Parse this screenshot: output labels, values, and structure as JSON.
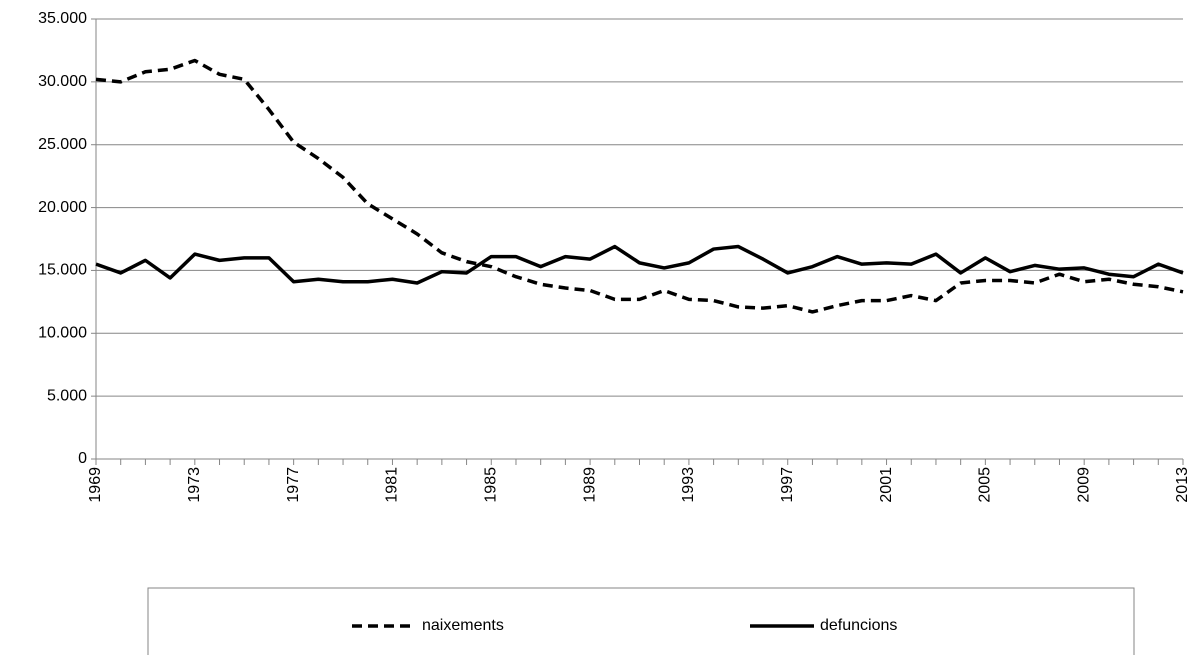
{
  "chart_data": {
    "type": "line",
    "x": [
      1969,
      1970,
      1971,
      1972,
      1973,
      1974,
      1975,
      1976,
      1977,
      1978,
      1979,
      1980,
      1981,
      1982,
      1983,
      1984,
      1985,
      1986,
      1987,
      1988,
      1989,
      1990,
      1991,
      1992,
      1993,
      1994,
      1995,
      1996,
      1997,
      1998,
      1999,
      2000,
      2001,
      2002,
      2003,
      2004,
      2005,
      2006,
      2007,
      2008,
      2009,
      2010,
      2011,
      2012,
      2013
    ],
    "series": [
      {
        "name": "naixements",
        "color": "#000000",
        "line_style": "dashed",
        "values": [
          30200,
          30000,
          30800,
          31000,
          31700,
          30600,
          30200,
          27800,
          25200,
          23900,
          22400,
          20300,
          19100,
          17900,
          16400,
          15700,
          15300,
          14500,
          13900,
          13600,
          13400,
          12700,
          12700,
          13400,
          12700,
          12600,
          12100,
          12000,
          12200,
          11700,
          12200,
          12600,
          12600,
          13000,
          12600,
          14000,
          14200,
          14200,
          14000,
          14700,
          14100,
          14300,
          13900,
          13700,
          13300
        ]
      },
      {
        "name": "defuncions",
        "color": "#000000",
        "line_style": "solid",
        "values": [
          15500,
          14800,
          15800,
          14400,
          16300,
          15800,
          16000,
          16000,
          14100,
          14300,
          14100,
          14100,
          14300,
          14000,
          14900,
          14800,
          16100,
          16100,
          15300,
          16100,
          15900,
          16900,
          15600,
          15200,
          15600,
          16700,
          16900,
          15900,
          14800,
          15300,
          16100,
          15500,
          15600,
          15500,
          16300,
          14800,
          16000,
          14900,
          15400,
          15100,
          15200,
          14700,
          14500,
          15500,
          14800
        ]
      }
    ],
    "xlim": [
      1969,
      2013
    ],
    "xticks": [
      1969,
      1973,
      1977,
      1981,
      1985,
      1989,
      1993,
      1997,
      2001,
      2005,
      2009,
      2013
    ],
    "ylim": [
      0,
      35000
    ],
    "yticks": [
      0,
      {
        "value": 5000,
        "label": "5.000"
      },
      {
        "value": 10000,
        "label": "10.000"
      },
      {
        "value": 15000,
        "label": "15.000"
      },
      {
        "value": 20000,
        "label": "20.000"
      },
      {
        "value": 25000,
        "label": "25.000"
      },
      {
        "value": 30000,
        "label": "30.000"
      },
      {
        "value": 35000,
        "label": "35.000"
      }
    ],
    "grid": true,
    "legend": "bottom"
  }
}
